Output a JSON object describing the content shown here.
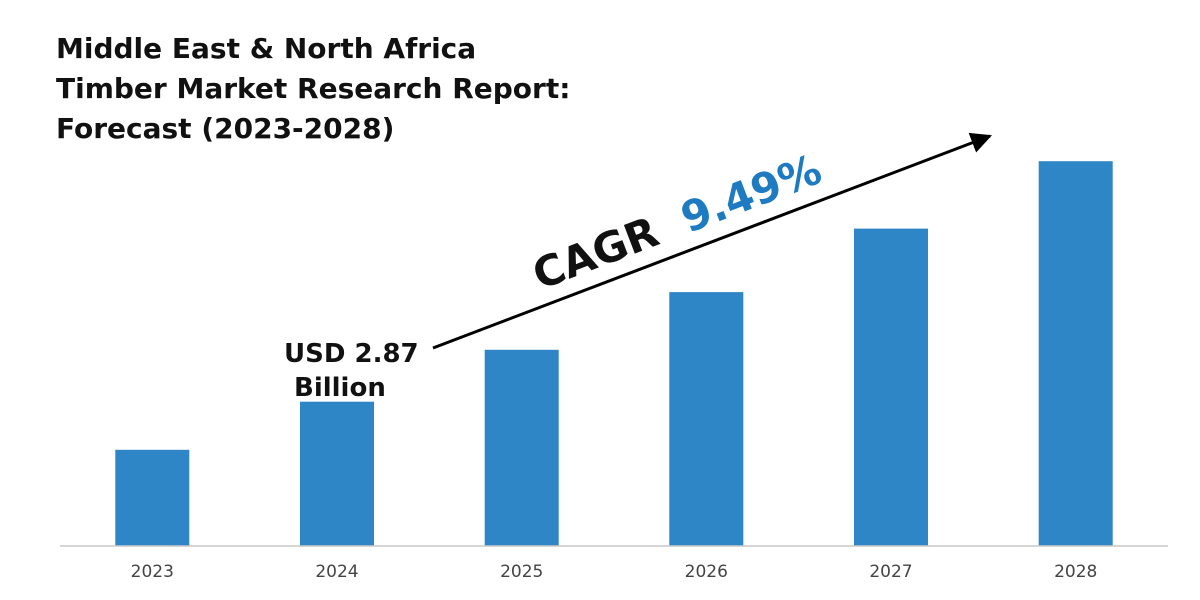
{
  "chart_data": {
    "type": "bar",
    "title_lines": [
      "Middle East & North Africa",
      "Timber Market Research Report:",
      "Forecast (2023-2028)"
    ],
    "categories": [
      "2023",
      "2024",
      "2025",
      "2026",
      "2027",
      "2028"
    ],
    "values": [
      2.62,
      2.87,
      3.14,
      3.44,
      3.77,
      4.12
    ],
    "ylim": [
      2.12,
      4.22
    ],
    "xlabel": "",
    "ylabel": "",
    "grid": false,
    "annotation": {
      "label_line1": "USD 2.87",
      "label_line2": "Billion"
    },
    "cagr": {
      "prefix": "CAGR",
      "value": "9.49%"
    },
    "colors": {
      "bar": "#2e86c6",
      "cagr_value": "#1f7bc1",
      "axis": "#c8c8c8",
      "arrow": "#000000"
    }
  }
}
